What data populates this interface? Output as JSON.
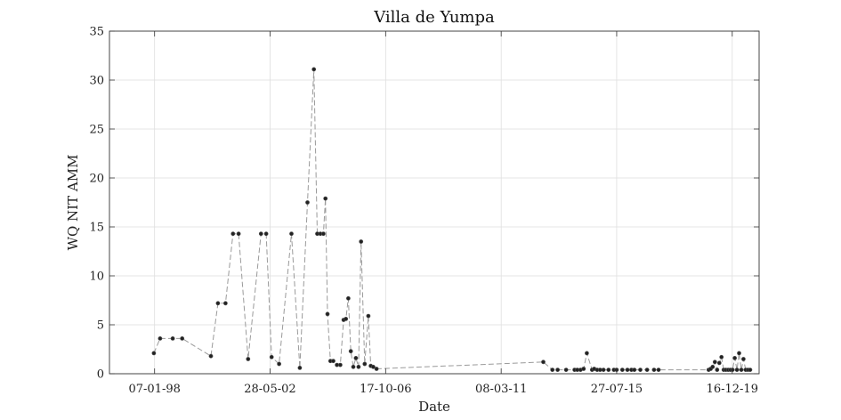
{
  "chart_data": {
    "type": "scatter",
    "title": "Villa de Yumpa",
    "xlabel": "Date",
    "ylabel": "WQ NIT AMM",
    "ylim": [
      0,
      35
    ],
    "xlim": [
      "1996-04-21",
      "2020-12-23"
    ],
    "y_ticks": [
      0,
      5,
      10,
      15,
      20,
      25,
      30,
      35
    ],
    "x_ticks": [
      {
        "date": "1998-01-07",
        "label": "07-01-98"
      },
      {
        "date": "2002-05-28",
        "label": "28-05-02"
      },
      {
        "date": "2006-10-17",
        "label": "17-10-06"
      },
      {
        "date": "2011-03-08",
        "label": "08-03-11"
      },
      {
        "date": "2015-07-27",
        "label": "27-07-15"
      },
      {
        "date": "2019-12-16",
        "label": "16-12-19"
      }
    ],
    "grid": true,
    "line_style": "dashed",
    "colors": {
      "marker": "#222222",
      "line": "#9a9a9a",
      "grid": "#dedede",
      "axes": "#333333"
    },
    "series": [
      {
        "x": [
          "1997-12-28",
          "1998-03-24",
          "1998-09-16",
          "1999-01-25",
          "2000-02-27",
          "2000-06-04",
          "2000-09-17",
          "2000-12-30",
          "2001-03-17",
          "2001-07-28",
          "2002-01-23",
          "2002-04-04",
          "2002-06-18",
          "2002-09-30",
          "2003-03-21",
          "2003-07-15",
          "2003-10-29",
          "2004-01-26",
          "2004-03-12",
          "2004-04-25",
          "2004-06-06",
          "2004-07-04",
          "2004-08-01",
          "2004-09-11",
          "2004-10-21",
          "2004-12-11",
          "2005-01-26",
          "2005-03-13",
          "2005-04-14",
          "2005-05-18",
          "2005-06-21",
          "2005-07-25",
          "2005-08-30",
          "2005-10-07",
          "2005-11-10",
          "2005-12-30",
          "2006-02-19",
          "2006-03-25",
          "2006-04-28",
          "2006-06-13",
          "2012-10-12",
          "2013-02-15",
          "2013-04-29",
          "2013-08-24",
          "2013-12-19",
          "2014-01-27",
          "2014-03-12",
          "2014-04-25",
          "2014-06-08",
          "2014-08-20",
          "2014-09-19",
          "2014-10-29",
          "2014-12-09",
          "2015-01-25",
          "2015-04-05",
          "2015-06-18",
          "2015-07-27",
          "2015-10-13",
          "2015-12-23",
          "2016-02-17",
          "2016-03-28",
          "2016-06-19",
          "2016-09-21",
          "2016-12-26",
          "2017-02-27",
          "2019-01-23",
          "2019-02-20",
          "2019-03-20",
          "2019-04-20",
          "2019-05-20",
          "2019-06-20",
          "2019-07-20",
          "2019-08-20",
          "2019-09-20",
          "2019-10-20",
          "2019-11-20",
          "2019-12-20",
          "2020-01-20",
          "2020-02-20",
          "2020-03-20",
          "2020-04-20",
          "2020-05-20",
          "2020-06-20",
          "2020-07-20",
          "2020-08-20"
        ],
        "y": [
          2.1,
          3.6,
          3.6,
          3.6,
          1.8,
          7.2,
          7.2,
          14.3,
          14.3,
          1.5,
          14.3,
          14.3,
          1.7,
          1.0,
          14.3,
          0.6,
          17.5,
          31.1,
          14.3,
          14.3,
          14.3,
          17.9,
          6.1,
          1.3,
          1.3,
          0.9,
          0.9,
          5.5,
          5.6,
          7.7,
          2.3,
          0.7,
          1.6,
          0.7,
          13.5,
          1.0,
          5.9,
          0.8,
          0.7,
          0.5,
          1.2,
          0.4,
          0.4,
          0.4,
          0.4,
          0.4,
          0.4,
          0.5,
          2.1,
          0.4,
          0.5,
          0.4,
          0.4,
          0.4,
          0.4,
          0.4,
          0.4,
          0.4,
          0.4,
          0.4,
          0.4,
          0.4,
          0.4,
          0.4,
          0.4,
          0.4,
          0.5,
          0.7,
          1.2,
          0.4,
          1.1,
          1.7,
          0.4,
          0.4,
          0.4,
          0.4,
          0.4,
          1.6,
          0.4,
          2.1,
          0.4,
          1.5,
          0.4,
          0.4,
          0.4
        ]
      }
    ]
  }
}
